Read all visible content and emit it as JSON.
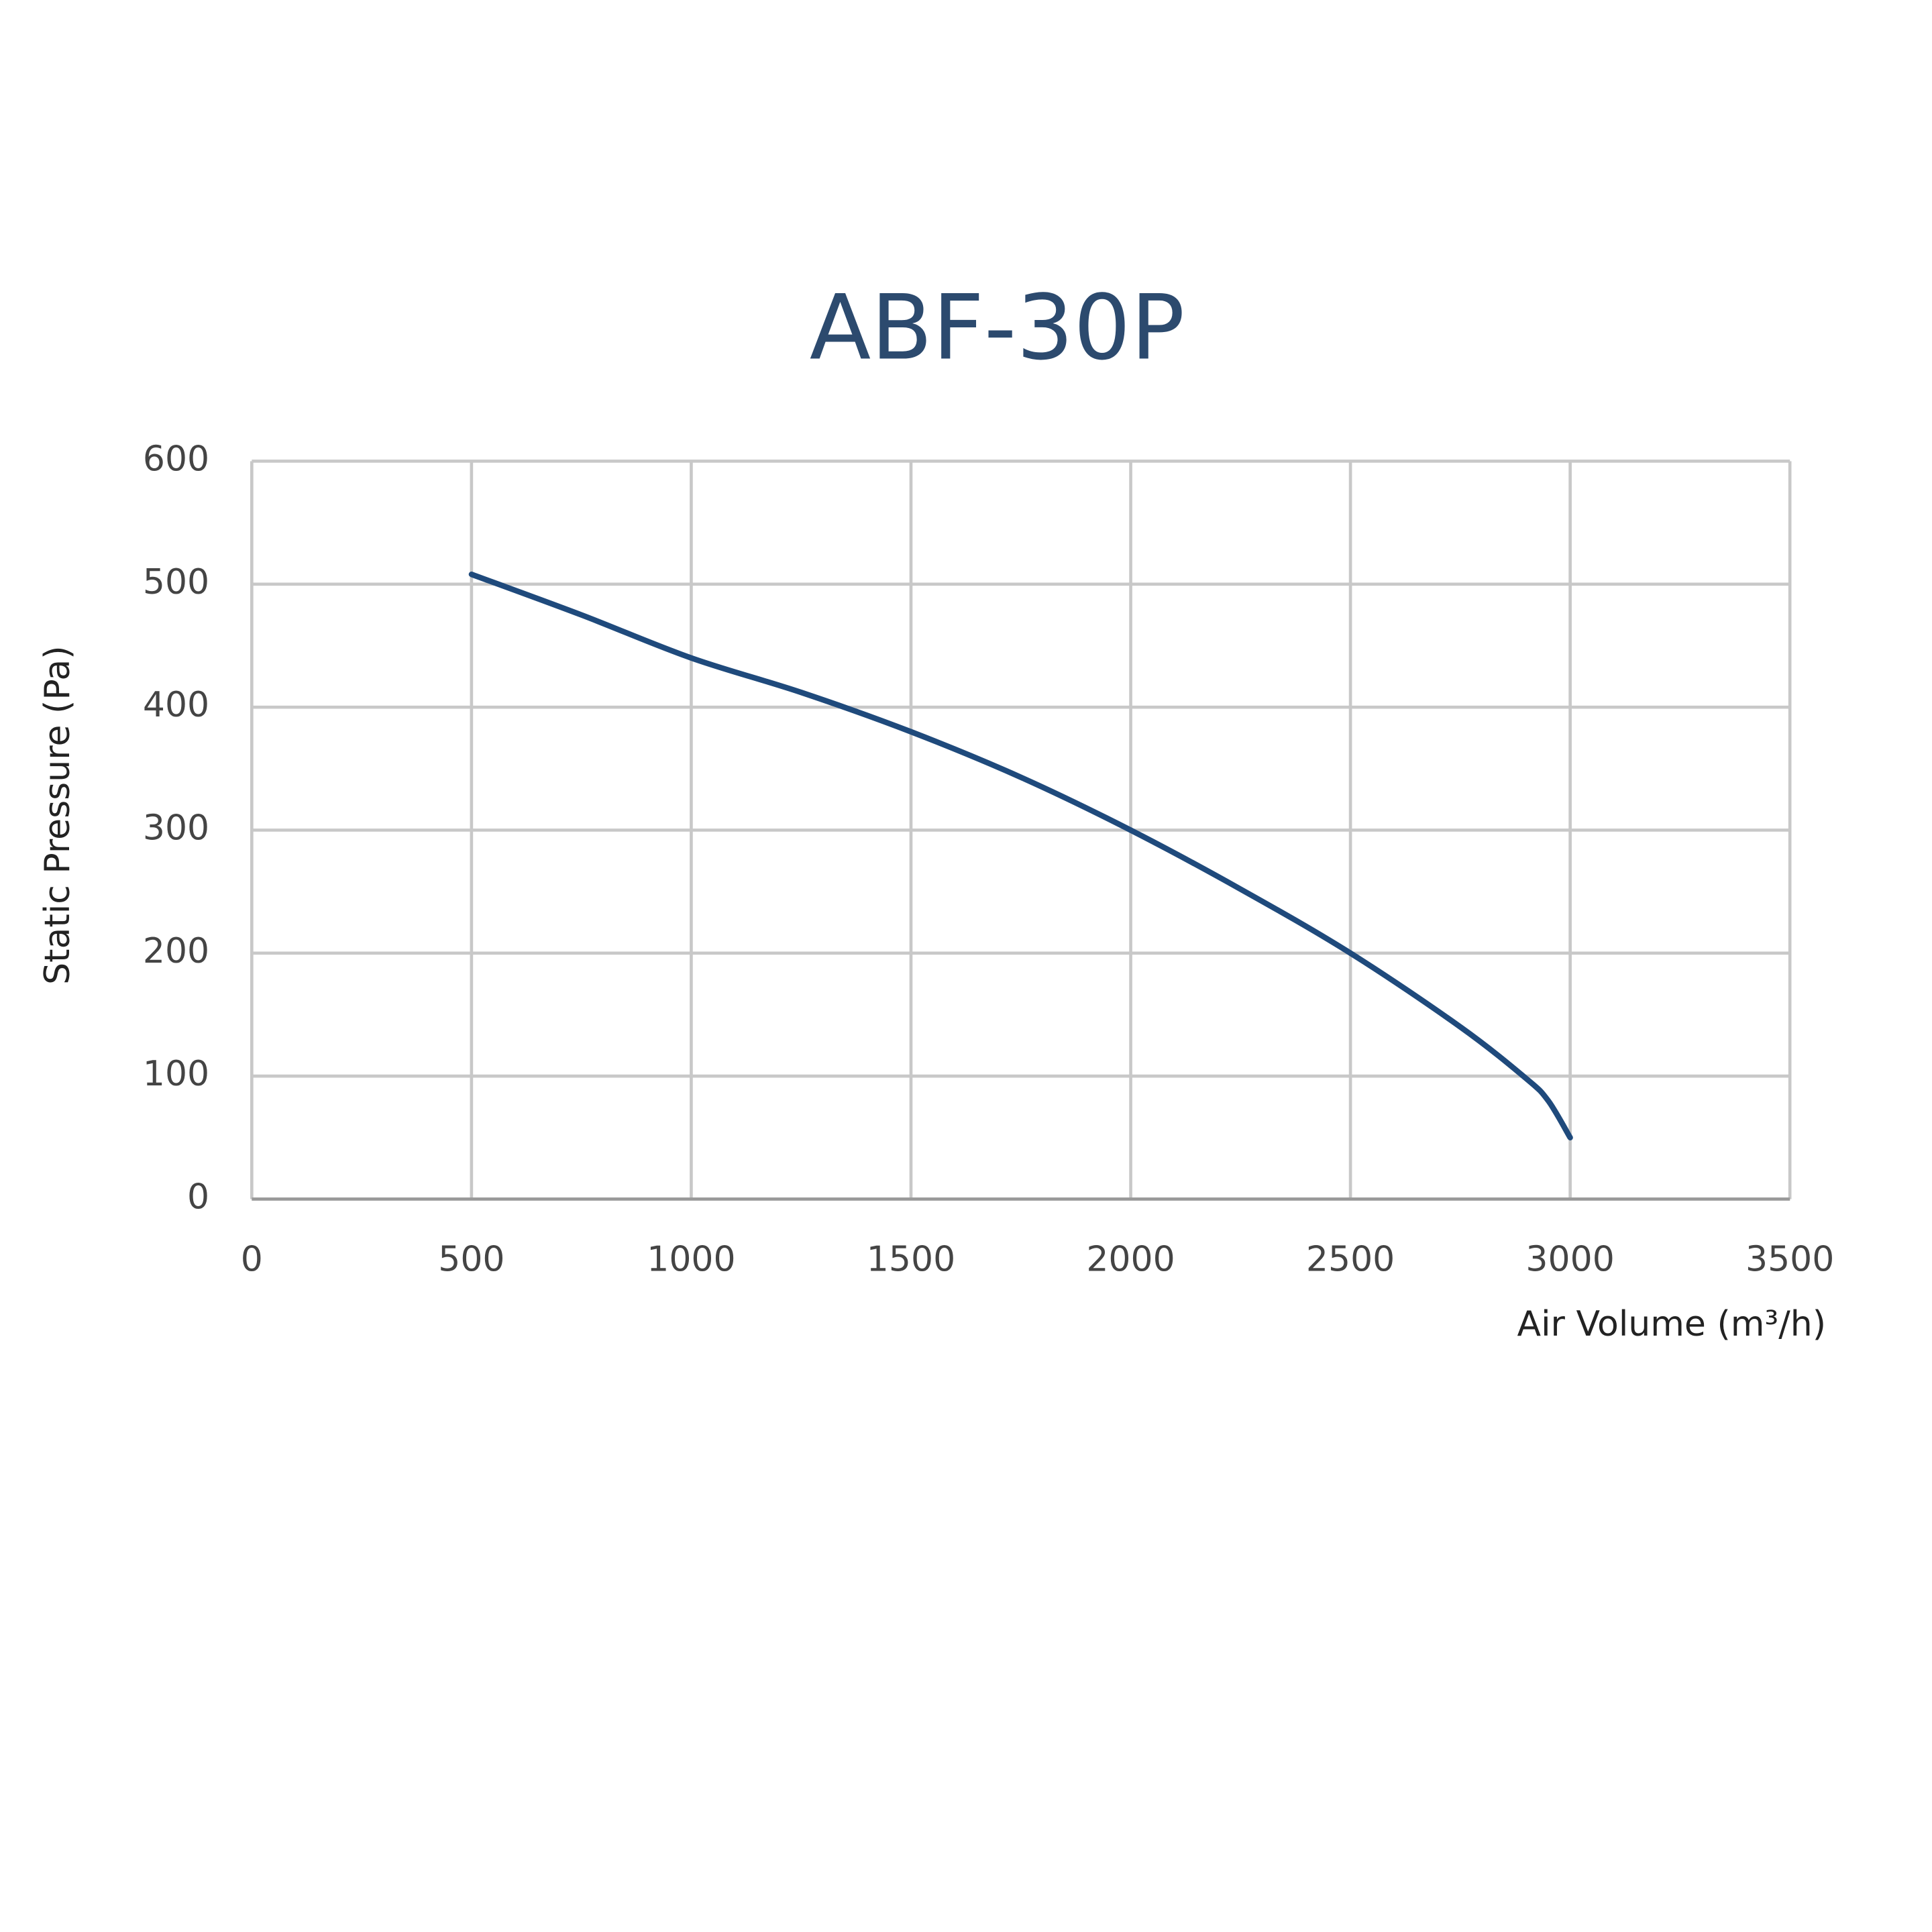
{
  "chart_data": {
    "type": "line",
    "title": "ABF-30P",
    "x_label": "Air Volume (m³/h)",
    "y_label": "Static Pressure (Pa)",
    "x": [
      500,
      750,
      1000,
      1250,
      1500,
      1750,
      2000,
      2250,
      2500,
      2750,
      2900,
      2950,
      3000
    ],
    "series": [
      {
        "name": "ABF-30P",
        "color": "#1f4a7c",
        "values": [
          508,
          475,
          440,
          412,
          380,
          343,
          300,
          252,
          200,
          140,
          98,
          80,
          50
        ]
      }
    ],
    "xlim": [
      0,
      3500
    ],
    "xticks": [
      0,
      500,
      1000,
      1500,
      2000,
      2500,
      3000,
      3500
    ],
    "ylim": [
      0,
      600
    ],
    "yticks": [
      0,
      100,
      200,
      300,
      400,
      500,
      600
    ],
    "grid": true
  }
}
